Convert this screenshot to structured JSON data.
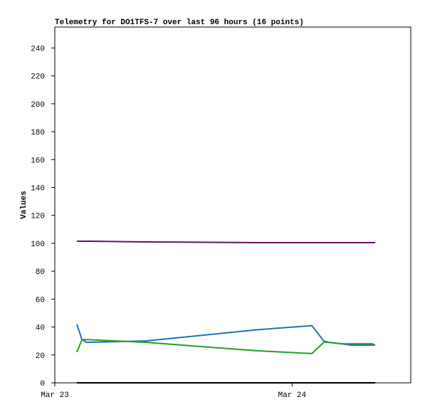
{
  "chart_data": {
    "type": "line",
    "title": "Telemetry for DO1TFS-7 over last 96 hours (16 points)",
    "y_label": "Values",
    "x": [
      2.23,
      2.74,
      3.24,
      9.23,
      20.4,
      26.0,
      27.2,
      27.7,
      28.3,
      29.0,
      29.9,
      30.5,
      31.2,
      31.8,
      32.1,
      32.4
    ],
    "xlim": [
      0,
      36
    ],
    "xticks": [
      {
        "value": 0,
        "label": "Mar 23"
      },
      {
        "value": 24,
        "label": "Mar 24"
      }
    ],
    "ylim": [
      0,
      255
    ],
    "yticks": [
      0,
      20,
      40,
      60,
      80,
      100,
      120,
      140,
      160,
      180,
      200,
      220,
      240
    ],
    "grid": false,
    "series": [
      {
        "color": "#1f6fbf",
        "values": [
          42,
          31,
          29,
          30,
          38,
          41,
          30,
          29,
          28.5,
          28,
          27,
          27,
          27,
          27,
          27,
          27
        ]
      },
      {
        "color": "#22a022",
        "values": [
          22,
          31,
          31,
          29,
          23,
          21,
          29,
          29,
          28.5,
          28,
          28,
          28,
          28,
          28,
          28,
          27
        ]
      },
      {
        "color": "#6a0a6a",
        "values": [
          101.5,
          101.5,
          101.5,
          101,
          100.5,
          100.5,
          100.5,
          100.5,
          100.5,
          100.5,
          100.5,
          100.5,
          100.5,
          100.5,
          100.5,
          100.5
        ]
      },
      {
        "color": "#000000",
        "values": [
          0,
          0,
          0,
          0,
          0,
          0,
          0,
          0,
          0,
          0,
          0,
          0,
          0,
          0,
          0,
          0
        ]
      }
    ]
  }
}
